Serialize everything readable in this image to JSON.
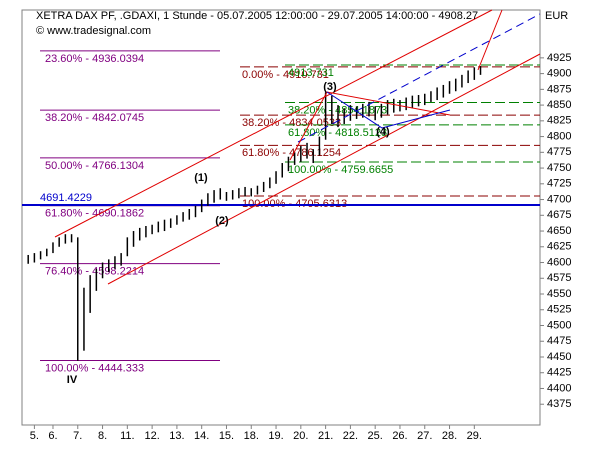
{
  "chart_data": {
    "type": "range",
    "title": "XETRA DAX PF, .GDAXI, 1 Stunde - 05.07.2005 12:00:00 - 29.07.2005 14:00:00 - 4908.27",
    "source": "© www.tradesignal.com",
    "currency": "EUR",
    "color": "#000000",
    "xlim": [
      -1,
      82.6
    ],
    "xticks": [
      {
        "value": 1,
        "label": "5."
      },
      {
        "value": 4,
        "label": "6."
      },
      {
        "value": 8,
        "label": "7."
      },
      {
        "value": 12,
        "label": "8."
      },
      {
        "value": 16,
        "label": "11."
      },
      {
        "value": 20,
        "label": "12."
      },
      {
        "value": 24,
        "label": "13."
      },
      {
        "value": 28,
        "label": "14."
      },
      {
        "value": 32,
        "label": "15."
      },
      {
        "value": 36,
        "label": "18."
      },
      {
        "value": 40,
        "label": "19."
      },
      {
        "value": 44,
        "label": "20."
      },
      {
        "value": 48,
        "label": "21."
      },
      {
        "value": 52,
        "label": "22."
      },
      {
        "value": 56,
        "label": "25."
      },
      {
        "value": 60,
        "label": "26."
      },
      {
        "value": 64,
        "label": "27."
      },
      {
        "value": 68,
        "label": "28."
      },
      {
        "value": 72,
        "label": "29."
      }
    ],
    "ylim": [
      4342,
      5001
    ],
    "yticks": [
      4375,
      4400,
      4425,
      4450,
      4475,
      4500,
      4525,
      4550,
      4575,
      4600,
      4625,
      4650,
      4675,
      4700,
      4725,
      4750,
      4775,
      4800,
      4825,
      4850,
      4875,
      4900,
      4925
    ],
    "low": [
      4598,
      4600,
      4605,
      4610,
      4615,
      4625,
      4630,
      4632,
      4444,
      4460,
      4520,
      4555,
      4575,
      4585,
      4590,
      4595,
      4610,
      4625,
      4635,
      4640,
      4645,
      4648,
      4650,
      4655,
      4660,
      4665,
      4668,
      4672,
      4680,
      4690,
      4695,
      4700,
      4698,
      4700,
      4702,
      4705,
      4705,
      4708,
      4712,
      4718,
      4725,
      4735,
      4745,
      4755,
      4760,
      4765,
      4758,
      4770,
      4795,
      4820,
      4815,
      4820,
      4825,
      4828,
      4830,
      4832,
      4826,
      4830,
      4835,
      4838,
      4840,
      4842,
      4845,
      4848,
      4850,
      4855,
      4858,
      4862,
      4868,
      4872,
      4878,
      4885,
      4890,
      4898
    ],
    "high": [
      4612,
      4615,
      4618,
      4622,
      4632,
      4640,
      4645,
      4645,
      4640,
      4560,
      4580,
      4590,
      4600,
      4605,
      4610,
      4615,
      4640,
      4650,
      4655,
      4658,
      4660,
      4665,
      4668,
      4670,
      4675,
      4680,
      4685,
      4690,
      4700,
      4710,
      4715,
      4718,
      4712,
      4715,
      4718,
      4720,
      4718,
      4722,
      4728,
      4735,
      4745,
      4758,
      4768,
      4775,
      4785,
      4790,
      4780,
      4800,
      4870,
      4865,
      4850,
      4845,
      4850,
      4848,
      4852,
      4855,
      4848,
      4852,
      4858,
      4860,
      4858,
      4862,
      4865,
      4866,
      4868,
      4872,
      4878,
      4882,
      4888,
      4892,
      4898,
      4905,
      4910,
      4912
    ],
    "support": {
      "label": "4691.4229",
      "value": 4691.4229,
      "color": "#0000cc"
    },
    "fib_sets": [
      {
        "color": "#800080",
        "levels": [
          {
            "label": "23.60% - 4936.0394",
            "value": 4936.0394
          },
          {
            "label": "38.20% - 4842.0745",
            "value": 4842.0745
          },
          {
            "label": "50.00% - 4766.1304",
            "value": 4766.1304
          },
          {
            "label": "61.80% - 4690.1862",
            "value": 4690.1862
          },
          {
            "label": "76.40% - 4598.2214",
            "value": 4598.2214
          },
          {
            "label": "100.00% - 4444.333",
            "value": 4444.333
          }
        ]
      },
      {
        "color": "#8b0000",
        "levels": [
          {
            "label": "0.00% - 4910.731",
            "value": 4910.731
          },
          {
            "label": "38.20% - 4834.0533",
            "value": 4834.0533
          },
          {
            "label": "61.80% - 4786.1254",
            "value": 4786.1254
          },
          {
            "label": "100.00% - 4705.6313",
            "value": 4705.6313
          }
        ]
      },
      {
        "color": "#008000",
        "levels": [
          {
            "label": "4913.731",
            "value": 4913.731
          },
          {
            "label": "38.20% - 4854.1873",
            "value": 4854.1873
          },
          {
            "label": "61.80% - 4818.5123",
            "value": 4818.5123
          },
          {
            "label": "100.00% - 4759.6655",
            "value": 4759.6655
          }
        ]
      }
    ],
    "waves": [
      "(1)",
      "(2)",
      "(3)",
      "(4)",
      "IV"
    ]
  }
}
